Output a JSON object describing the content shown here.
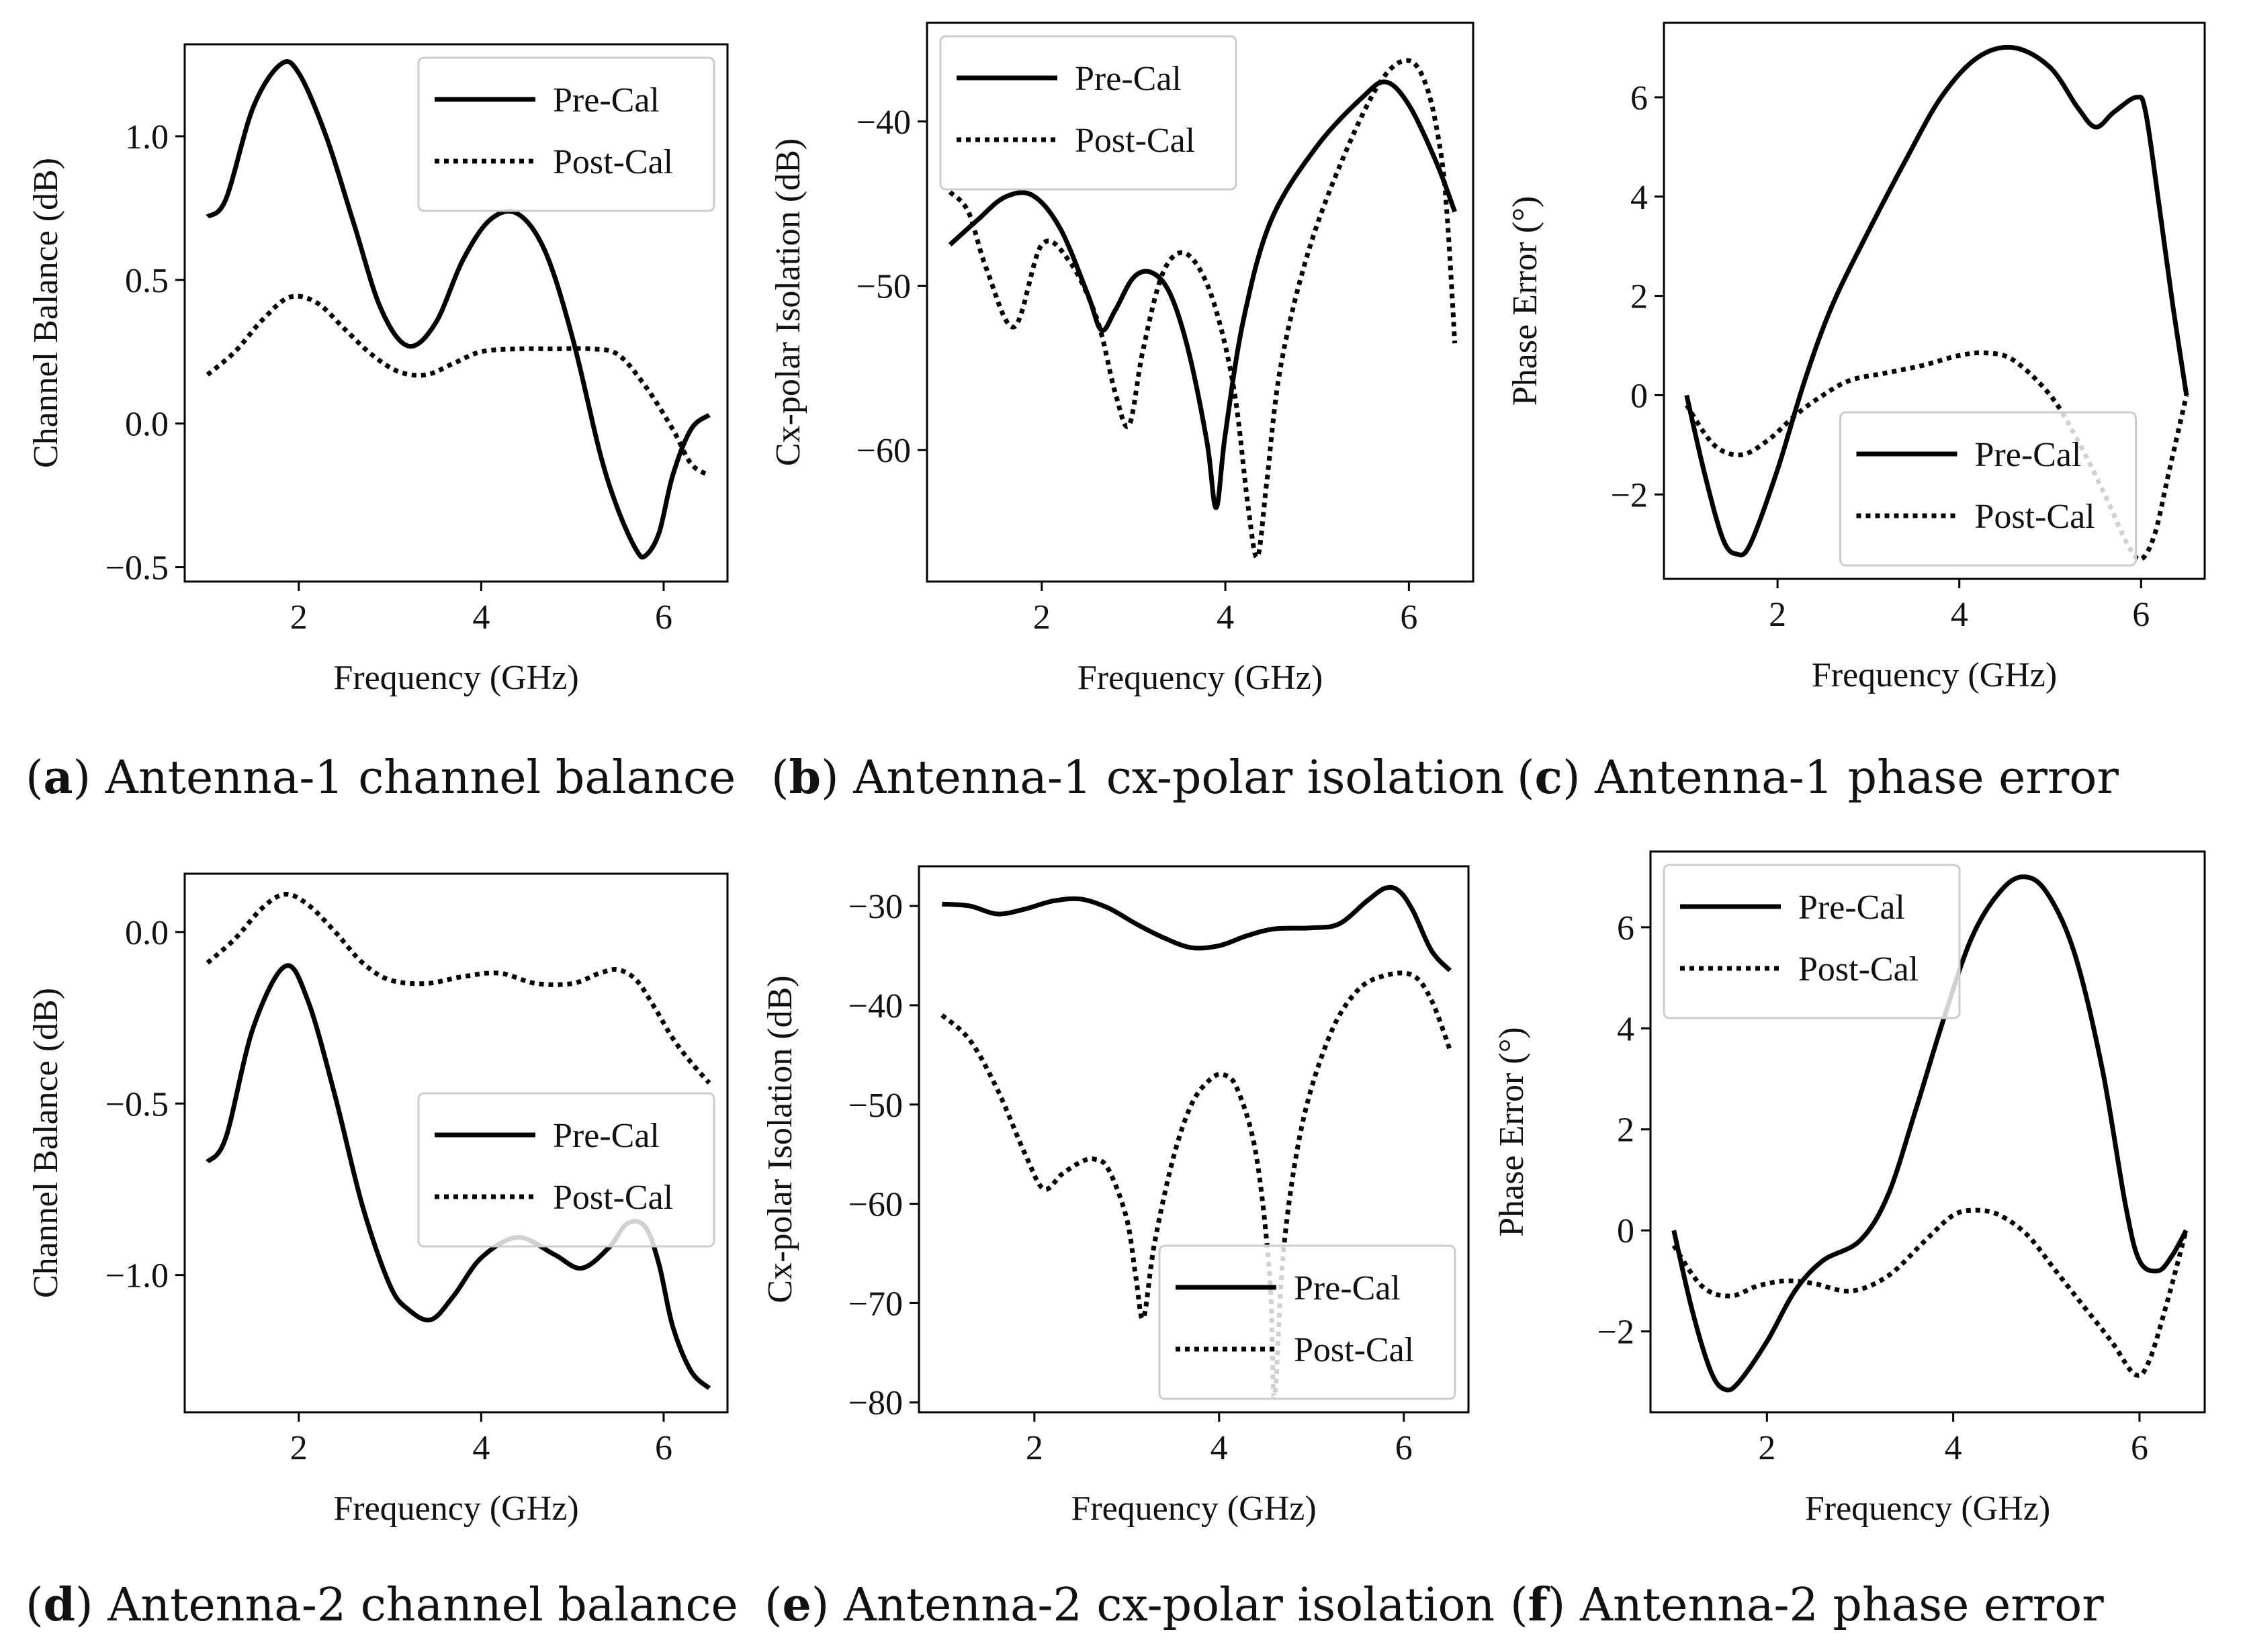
{
  "figure": {
    "legend_labels": [
      "Pre-Cal",
      "Post-Cal"
    ]
  },
  "captions": [
    {
      "letter": "a",
      "text": "Antenna-1 channel balance"
    },
    {
      "letter": "b",
      "text": "Antenna-1 cx-polar isolation"
    },
    {
      "letter": "c",
      "text": "Antenna-1 phase error"
    },
    {
      "letter": "d",
      "text": "Antenna-2 channel balance"
    },
    {
      "letter": "e",
      "text": "Antenna-2 cx-polar isolation"
    },
    {
      "letter": "f",
      "text": "Antenna-2 phase error"
    }
  ],
  "chart_data": [
    {
      "id": "a",
      "type": "line",
      "xlabel": "Frequency (GHz)",
      "ylabel": "Channel Balance (dB)",
      "xlim": [
        0.75,
        6.7
      ],
      "ylim": [
        -0.55,
        1.32
      ],
      "xticks": [
        2,
        4,
        6
      ],
      "yticks": [
        -0.5,
        0.0,
        0.5,
        1.0
      ],
      "ytick_labels": [
        "−0.5",
        "0.0",
        "0.5",
        "1.0"
      ],
      "legend_loc": "upper right",
      "series": [
        {
          "name": "Pre-Cal",
          "style": "solid",
          "x": [
            1.0,
            1.2,
            1.5,
            1.8,
            2.0,
            2.3,
            2.6,
            2.9,
            3.2,
            3.5,
            3.8,
            4.1,
            4.4,
            4.7,
            5.0,
            5.3,
            5.5,
            5.7,
            5.8,
            5.95,
            6.1,
            6.3,
            6.5
          ],
          "y": [
            0.72,
            0.78,
            1.1,
            1.25,
            1.22,
            1.0,
            0.7,
            0.4,
            0.27,
            0.35,
            0.57,
            0.71,
            0.73,
            0.6,
            0.3,
            -0.1,
            -0.3,
            -0.44,
            -0.46,
            -0.38,
            -0.18,
            -0.02,
            0.03
          ]
        },
        {
          "name": "Post-Cal",
          "style": "dotted",
          "x": [
            1.0,
            1.3,
            1.6,
            1.9,
            2.2,
            2.5,
            2.8,
            3.1,
            3.4,
            3.7,
            4.0,
            4.4,
            4.8,
            5.2,
            5.5,
            5.8,
            6.1,
            6.3,
            6.5
          ],
          "y": [
            0.17,
            0.25,
            0.36,
            0.44,
            0.42,
            0.33,
            0.24,
            0.18,
            0.17,
            0.21,
            0.25,
            0.26,
            0.26,
            0.26,
            0.24,
            0.13,
            -0.02,
            -0.14,
            -0.18
          ]
        }
      ]
    },
    {
      "id": "b",
      "type": "line",
      "xlabel": "Frequency (GHz)",
      "ylabel": "Cx-polar Isolation (dB)",
      "xlim": [
        0.75,
        6.7
      ],
      "ylim": [
        -68,
        -34
      ],
      "xticks": [
        2,
        4,
        6
      ],
      "yticks": [
        -60,
        -50,
        -40
      ],
      "ytick_labels": [
        "−60",
        "−50",
        "−40"
      ],
      "legend_loc": "upper left",
      "series": [
        {
          "name": "Pre-Cal",
          "style": "solid",
          "x": [
            1.0,
            1.3,
            1.6,
            1.9,
            2.2,
            2.5,
            2.65,
            2.8,
            3.0,
            3.2,
            3.4,
            3.6,
            3.8,
            3.9,
            4.0,
            4.2,
            4.5,
            5.0,
            5.5,
            5.75,
            6.0,
            6.3,
            6.5
          ],
          "y": [
            -47.5,
            -46.0,
            -44.6,
            -44.5,
            -46.5,
            -50.5,
            -52.7,
            -51.5,
            -49.5,
            -49.2,
            -50.5,
            -54.0,
            -59.5,
            -63.5,
            -59.0,
            -52.0,
            -46.0,
            -41.5,
            -38.5,
            -37.6,
            -39.0,
            -42.5,
            -45.5
          ]
        },
        {
          "name": "Post-Cal",
          "style": "dotted",
          "x": [
            1.0,
            1.2,
            1.4,
            1.7,
            2.0,
            2.3,
            2.6,
            2.8,
            2.95,
            3.1,
            3.3,
            3.5,
            3.7,
            3.9,
            4.1,
            4.25,
            4.35,
            4.45,
            4.6,
            4.9,
            5.3,
            5.7,
            6.0,
            6.2,
            6.35,
            6.42,
            6.5
          ],
          "y": [
            -44.3,
            -45.5,
            -49.0,
            -52.5,
            -47.5,
            -48.5,
            -52.0,
            -56.5,
            -58.5,
            -54.0,
            -49.5,
            -48.0,
            -48.8,
            -51.5,
            -56.5,
            -63.5,
            -66.5,
            -62.0,
            -55.0,
            -48.0,
            -42.0,
            -37.5,
            -36.3,
            -38.0,
            -42.0,
            -46.0,
            -53.5
          ]
        }
      ]
    },
    {
      "id": "c",
      "type": "line",
      "xlabel": "Frequency (GHz)",
      "ylabel": "Phase Error (°)",
      "xlim": [
        0.75,
        6.7
      ],
      "ylim": [
        -3.7,
        7.5
      ],
      "xticks": [
        2,
        4,
        6
      ],
      "yticks": [
        -2,
        0,
        2,
        4,
        6
      ],
      "ytick_labels": [
        "−2",
        "0",
        "2",
        "4",
        "6"
      ],
      "legend_loc": "lower center",
      "series": [
        {
          "name": "Pre-Cal",
          "style": "solid",
          "x": [
            1.0,
            1.2,
            1.4,
            1.55,
            1.7,
            2.0,
            2.3,
            2.6,
            3.0,
            3.4,
            3.8,
            4.2,
            4.6,
            5.0,
            5.3,
            5.5,
            5.7,
            5.95,
            6.05,
            6.2,
            6.35,
            6.5
          ],
          "y": [
            0.0,
            -1.6,
            -2.9,
            -3.2,
            -3.0,
            -1.5,
            0.3,
            1.8,
            3.3,
            4.7,
            6.0,
            6.8,
            7.0,
            6.6,
            5.8,
            5.4,
            5.7,
            6.0,
            5.7,
            3.8,
            1.8,
            0.0
          ]
        },
        {
          "name": "Post-Cal",
          "style": "dotted",
          "x": [
            1.0,
            1.3,
            1.6,
            1.9,
            2.2,
            2.5,
            2.8,
            3.2,
            3.6,
            4.0,
            4.3,
            4.6,
            5.0,
            5.3,
            5.6,
            5.85,
            6.0,
            6.15,
            6.3,
            6.5
          ],
          "y": [
            -0.2,
            -1.0,
            -1.2,
            -0.9,
            -0.4,
            0.0,
            0.3,
            0.45,
            0.6,
            0.8,
            0.85,
            0.7,
            0.0,
            -0.9,
            -2.0,
            -3.0,
            -3.3,
            -2.8,
            -1.6,
            0.0
          ]
        }
      ]
    },
    {
      "id": "d",
      "type": "line",
      "xlabel": "Frequency (GHz)",
      "ylabel": "Channel Balance (dB)",
      "xlim": [
        0.75,
        6.7
      ],
      "ylim": [
        -1.4,
        0.17
      ],
      "xticks": [
        2,
        4,
        6
      ],
      "yticks": [
        -1.0,
        -0.5,
        0.0
      ],
      "ytick_labels": [
        "−1.0",
        "−0.5",
        "0.0"
      ],
      "legend_loc": "center right",
      "series": [
        {
          "name": "Pre-Cal",
          "style": "solid",
          "x": [
            1.0,
            1.2,
            1.5,
            1.85,
            2.1,
            2.4,
            2.7,
            3.0,
            3.2,
            3.45,
            3.7,
            4.0,
            4.4,
            4.8,
            5.1,
            5.4,
            5.6,
            5.8,
            5.95,
            6.1,
            6.3,
            6.5
          ],
          "y": [
            -0.67,
            -0.6,
            -0.28,
            -0.1,
            -0.2,
            -0.48,
            -0.8,
            -1.03,
            -1.1,
            -1.13,
            -1.06,
            -0.95,
            -0.89,
            -0.94,
            -0.98,
            -0.92,
            -0.85,
            -0.86,
            -0.97,
            -1.15,
            -1.28,
            -1.33
          ]
        },
        {
          "name": "Post-Cal",
          "style": "dotted",
          "x": [
            1.0,
            1.3,
            1.6,
            1.85,
            2.1,
            2.4,
            2.7,
            3.0,
            3.4,
            3.8,
            4.2,
            4.6,
            5.0,
            5.3,
            5.5,
            5.7,
            5.9,
            6.1,
            6.3,
            6.5
          ],
          "y": [
            -0.09,
            -0.02,
            0.07,
            0.11,
            0.08,
            0.0,
            -0.09,
            -0.14,
            -0.15,
            -0.13,
            -0.12,
            -0.15,
            -0.15,
            -0.12,
            -0.11,
            -0.14,
            -0.22,
            -0.31,
            -0.38,
            -0.44
          ]
        }
      ]
    },
    {
      "id": "e",
      "type": "line",
      "xlabel": "Frequency (GHz)",
      "ylabel": "Cx-polar Isolation (dB)",
      "xlim": [
        0.75,
        6.7
      ],
      "ylim": [
        -81,
        -26
      ],
      "xticks": [
        2,
        4,
        6
      ],
      "yticks": [
        -80,
        -70,
        -60,
        -50,
        -40,
        -30
      ],
      "ytick_labels": [
        "−80",
        "−70",
        "−60",
        "−50",
        "−40",
        "−30"
      ],
      "legend_loc": "lower right",
      "series": [
        {
          "name": "Pre-Cal",
          "style": "solid",
          "x": [
            1.0,
            1.3,
            1.6,
            1.9,
            2.2,
            2.5,
            2.8,
            3.1,
            3.4,
            3.7,
            4.0,
            4.3,
            4.6,
            5.0,
            5.3,
            5.6,
            5.8,
            5.95,
            6.1,
            6.3,
            6.5
          ],
          "y": [
            -29.8,
            -30.0,
            -30.8,
            -30.3,
            -29.5,
            -29.3,
            -30.2,
            -31.8,
            -33.2,
            -34.2,
            -34.0,
            -33.0,
            -32.3,
            -32.2,
            -31.8,
            -29.5,
            -28.2,
            -28.5,
            -30.5,
            -34.5,
            -36.5
          ]
        },
        {
          "name": "Post-Cal",
          "style": "dotted",
          "x": [
            1.0,
            1.3,
            1.6,
            1.9,
            2.1,
            2.3,
            2.5,
            2.65,
            2.8,
            3.0,
            3.1,
            3.18,
            3.3,
            3.5,
            3.7,
            3.9,
            4.05,
            4.2,
            4.4,
            4.55,
            4.6,
            4.7,
            4.9,
            5.2,
            5.5,
            5.8,
            6.1,
            6.3,
            6.5
          ],
          "y": [
            -41.0,
            -43.5,
            -48.5,
            -55.0,
            -58.5,
            -57.0,
            -55.8,
            -55.5,
            -56.5,
            -61.5,
            -67.5,
            -71.5,
            -64.0,
            -55.5,
            -50.0,
            -47.5,
            -47.0,
            -48.5,
            -55.0,
            -67.5,
            -79.5,
            -64.5,
            -52.0,
            -43.0,
            -38.5,
            -37.0,
            -37.0,
            -39.5,
            -44.5
          ]
        }
      ]
    },
    {
      "id": "f",
      "type": "line",
      "xlabel": "Frequency (GHz)",
      "ylabel": "Phase Error (°)",
      "xlim": [
        0.75,
        6.7
      ],
      "ylim": [
        -3.6,
        7.5
      ],
      "xticks": [
        2,
        4,
        6
      ],
      "yticks": [
        -2,
        0,
        2,
        4,
        6
      ],
      "ytick_labels": [
        "−2",
        "0",
        "2",
        "4",
        "6"
      ],
      "legend_loc": "upper left",
      "series": [
        {
          "name": "Pre-Cal",
          "style": "solid",
          "x": [
            1.0,
            1.2,
            1.4,
            1.55,
            1.7,
            2.0,
            2.3,
            2.6,
            3.0,
            3.3,
            3.6,
            3.9,
            4.2,
            4.5,
            4.75,
            5.0,
            5.3,
            5.6,
            5.85,
            6.0,
            6.2,
            6.35,
            6.5
          ],
          "y": [
            0.0,
            -1.6,
            -2.8,
            -3.15,
            -3.0,
            -2.2,
            -1.2,
            -0.6,
            -0.2,
            0.7,
            2.4,
            4.2,
            5.8,
            6.7,
            7.0,
            6.7,
            5.5,
            3.2,
            0.5,
            -0.6,
            -0.8,
            -0.5,
            0.0
          ]
        },
        {
          "name": "Post-Cal",
          "style": "dotted",
          "x": [
            1.0,
            1.3,
            1.6,
            1.9,
            2.2,
            2.5,
            2.9,
            3.3,
            3.7,
            4.0,
            4.25,
            4.5,
            4.8,
            5.1,
            5.4,
            5.7,
            5.95,
            6.1,
            6.3,
            6.5
          ],
          "y": [
            -0.3,
            -1.1,
            -1.3,
            -1.1,
            -1.0,
            -1.05,
            -1.2,
            -0.9,
            -0.2,
            0.3,
            0.4,
            0.3,
            -0.1,
            -0.8,
            -1.5,
            -2.2,
            -2.85,
            -2.6,
            -1.4,
            0.0
          ]
        }
      ]
    }
  ]
}
